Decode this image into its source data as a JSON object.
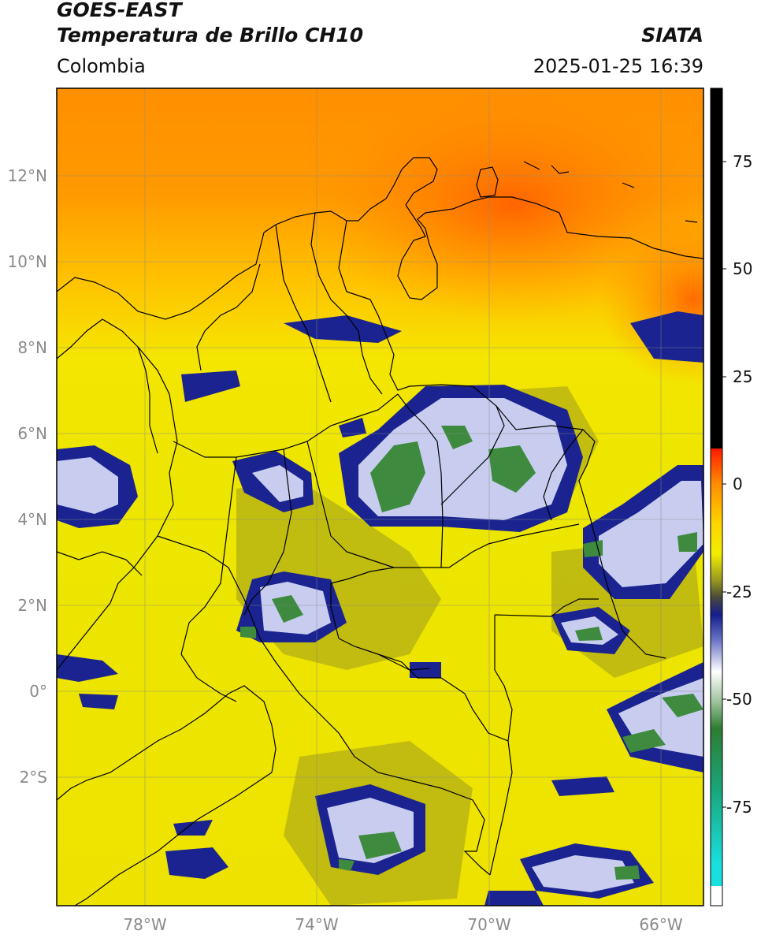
{
  "header": {
    "satellite": "GOES-EAST",
    "product": "Temperatura de Brillo CH10",
    "region": "Colombia",
    "brand": "SIATA",
    "timestamp": "2025-01-25 16:39"
  },
  "axes": {
    "lat_labels": [
      "12°N",
      "10°N",
      "8°N",
      "6°N",
      "4°N",
      "2°N",
      "0°",
      "2°S"
    ],
    "lon_labels": [
      "78°W",
      "74°W",
      "70°W",
      "66°W"
    ]
  },
  "colorbar": {
    "tick_labels": [
      "75",
      "50",
      "25",
      "0",
      "-25",
      "-50",
      "-75"
    ],
    "colors": {
      "black": "#000000",
      "red": "#ff1a00",
      "orange": "#ff8c00",
      "yellow": "#f2ee00",
      "olive": "#7a7a2a",
      "navy": "#141e8c",
      "white": "#ffffff",
      "green": "#2e7d32",
      "teal": "#19b8a5",
      "cyan": "#19e0e0"
    }
  }
}
